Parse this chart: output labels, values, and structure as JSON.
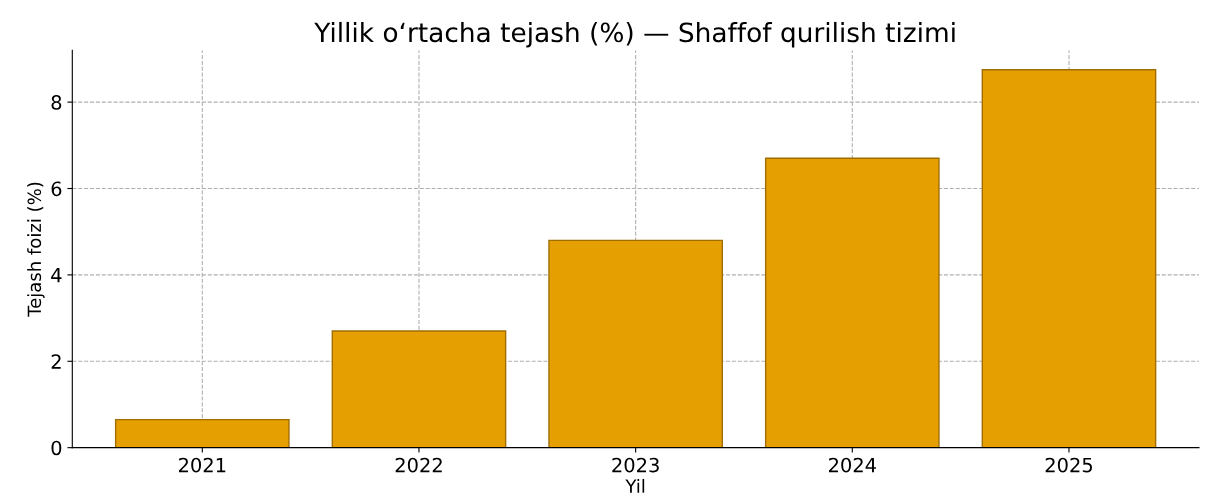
{
  "chart_data": {
    "type": "bar",
    "title": "Yillik o‘rtacha tejash (%) — Shaffof qurilish tizimi",
    "xlabel": "Yil",
    "ylabel": "Tejash foizi (%)",
    "categories": [
      "2021",
      "2022",
      "2023",
      "2024",
      "2025"
    ],
    "values": [
      0.65,
      2.7,
      4.8,
      6.7,
      8.75
    ],
    "color": "#e69f00",
    "ylim": [
      0,
      9.2
    ],
    "yticks": [
      0,
      2,
      4,
      6,
      8
    ],
    "grid": true
  }
}
